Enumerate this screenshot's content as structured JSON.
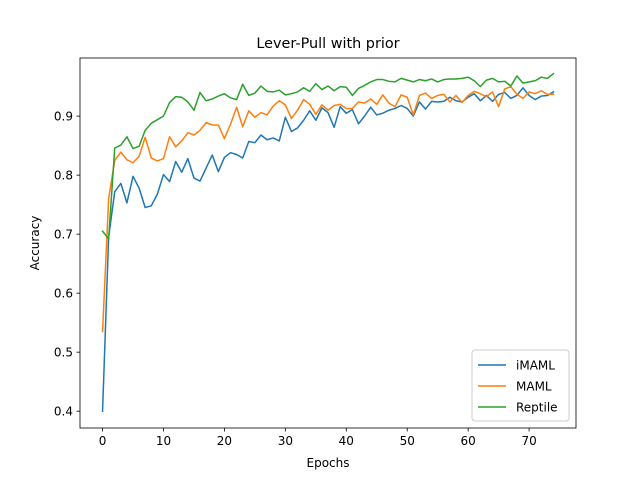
{
  "chart_data": {
    "type": "line",
    "title": "Lever-Pull with prior",
    "xlabel": "Epochs",
    "ylabel": "Accuracy",
    "xlim": [
      -3.7,
      77.7
    ],
    "ylim": [
      0.3715,
      0.9985
    ],
    "x_ticks": [
      0,
      10,
      20,
      30,
      40,
      50,
      60,
      70
    ],
    "x_tick_labels": [
      "0",
      "10",
      "20",
      "30",
      "40",
      "50",
      "60",
      "70"
    ],
    "y_ticks": [
      0.4,
      0.5,
      0.6,
      0.7,
      0.8,
      0.9
    ],
    "y_tick_labels": [
      "0.4",
      "0.5",
      "0.6",
      "0.7",
      "0.8",
      "0.9"
    ],
    "grid": false,
    "legend_position": "lower right",
    "x": [
      0,
      1,
      2,
      3,
      4,
      5,
      6,
      7,
      8,
      9,
      10,
      11,
      12,
      13,
      14,
      15,
      16,
      17,
      18,
      19,
      20,
      21,
      22,
      23,
      24,
      25,
      26,
      27,
      28,
      29,
      30,
      31,
      32,
      33,
      34,
      35,
      36,
      37,
      38,
      39,
      40,
      41,
      42,
      43,
      44,
      45,
      46,
      47,
      48,
      49,
      50,
      51,
      52,
      53,
      54,
      55,
      56,
      57,
      58,
      59,
      60,
      61,
      62,
      63,
      64,
      65,
      66,
      67,
      68,
      69,
      70,
      71,
      72,
      73,
      74
    ],
    "series": [
      {
        "name": "iMAML",
        "color": "#1f77b4",
        "values": [
          0.4,
          0.695,
          0.772,
          0.786,
          0.753,
          0.798,
          0.778,
          0.745,
          0.748,
          0.768,
          0.801,
          0.789,
          0.823,
          0.805,
          0.828,
          0.795,
          0.79,
          0.812,
          0.834,
          0.806,
          0.83,
          0.838,
          0.835,
          0.829,
          0.857,
          0.855,
          0.868,
          0.86,
          0.863,
          0.858,
          0.898,
          0.874,
          0.88,
          0.893,
          0.909,
          0.893,
          0.914,
          0.906,
          0.881,
          0.916,
          0.905,
          0.911,
          0.887,
          0.9,
          0.915,
          0.902,
          0.905,
          0.91,
          0.913,
          0.918,
          0.913,
          0.9,
          0.924,
          0.912,
          0.925,
          0.924,
          0.925,
          0.932,
          0.926,
          0.924,
          0.932,
          0.938,
          0.926,
          0.935,
          0.925,
          0.937,
          0.94,
          0.93,
          0.935,
          0.948,
          0.935,
          0.928,
          0.934,
          0.935,
          0.941
        ]
      },
      {
        "name": "MAML",
        "color": "#ff7f0e",
        "values": [
          0.535,
          0.76,
          0.825,
          0.839,
          0.826,
          0.821,
          0.832,
          0.864,
          0.829,
          0.824,
          0.828,
          0.865,
          0.848,
          0.858,
          0.872,
          0.868,
          0.876,
          0.889,
          0.885,
          0.885,
          0.862,
          0.886,
          0.915,
          0.882,
          0.909,
          0.898,
          0.906,
          0.902,
          0.917,
          0.926,
          0.919,
          0.896,
          0.91,
          0.928,
          0.92,
          0.903,
          0.919,
          0.91,
          0.918,
          0.92,
          0.913,
          0.913,
          0.924,
          0.922,
          0.929,
          0.92,
          0.936,
          0.922,
          0.916,
          0.936,
          0.932,
          0.902,
          0.935,
          0.939,
          0.93,
          0.935,
          0.937,
          0.924,
          0.935,
          0.923,
          0.935,
          0.942,
          0.938,
          0.933,
          0.941,
          0.916,
          0.946,
          0.95,
          0.937,
          0.93,
          0.941,
          0.938,
          0.943,
          0.937,
          0.937
        ]
      },
      {
        "name": "Reptile",
        "color": "#2ca02c",
        "values": [
          0.705,
          0.692,
          0.846,
          0.851,
          0.865,
          0.845,
          0.849,
          0.876,
          0.888,
          0.894,
          0.9,
          0.923,
          0.933,
          0.932,
          0.924,
          0.91,
          0.94,
          0.926,
          0.929,
          0.934,
          0.938,
          0.931,
          0.928,
          0.954,
          0.935,
          0.939,
          0.951,
          0.942,
          0.941,
          0.944,
          0.936,
          0.938,
          0.941,
          0.948,
          0.942,
          0.955,
          0.945,
          0.951,
          0.943,
          0.95,
          0.949,
          0.935,
          0.947,
          0.952,
          0.958,
          0.962,
          0.962,
          0.959,
          0.958,
          0.964,
          0.961,
          0.958,
          0.962,
          0.96,
          0.963,
          0.958,
          0.962,
          0.963,
          0.963,
          0.964,
          0.966,
          0.96,
          0.95,
          0.961,
          0.964,
          0.958,
          0.959,
          0.951,
          0.968,
          0.956,
          0.958,
          0.96,
          0.966,
          0.964,
          0.972
        ]
      }
    ]
  }
}
